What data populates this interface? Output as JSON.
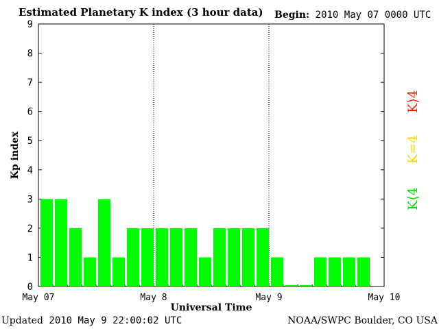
{
  "header": {
    "title": "Estimated Planetary K index (3 hour data)",
    "begin_label": "Begin:",
    "begin_value": "2010 May 07 0000 UTC"
  },
  "footer": {
    "updated_label": "Updated",
    "updated_value": "2010 May  9 22:00:02 UTC",
    "source": "NOAA/SWPC Boulder, CO USA"
  },
  "legend": [
    {
      "label": "K⟨4",
      "color": "#00e000"
    },
    {
      "label": "K=4",
      "color": "#ffd700"
    },
    {
      "label": "K⟩4",
      "color": "#ff2000"
    }
  ],
  "colors": {
    "bar": "#00ff00",
    "axis": "#000000"
  },
  "chart_data": {
    "type": "bar",
    "title": "Estimated Planetary K index (3 hour data)",
    "xlabel": "Universal Time",
    "ylabel": "Kp index",
    "ylim": [
      0,
      9
    ],
    "yticks": [
      "0",
      "1",
      "2",
      "3",
      "4",
      "5",
      "6",
      "7",
      "8",
      "9"
    ],
    "xticks": [
      "May 07",
      "May 8",
      "May 9",
      "May 10"
    ],
    "day_separators": [
      "May 8",
      "May 9"
    ],
    "grid": false,
    "values": [
      3,
      3,
      2,
      1,
      3,
      1,
      2,
      2,
      2,
      2,
      2,
      1,
      2,
      2,
      2,
      2,
      1,
      0.05,
      0.05,
      1,
      1,
      1,
      1
    ]
  }
}
